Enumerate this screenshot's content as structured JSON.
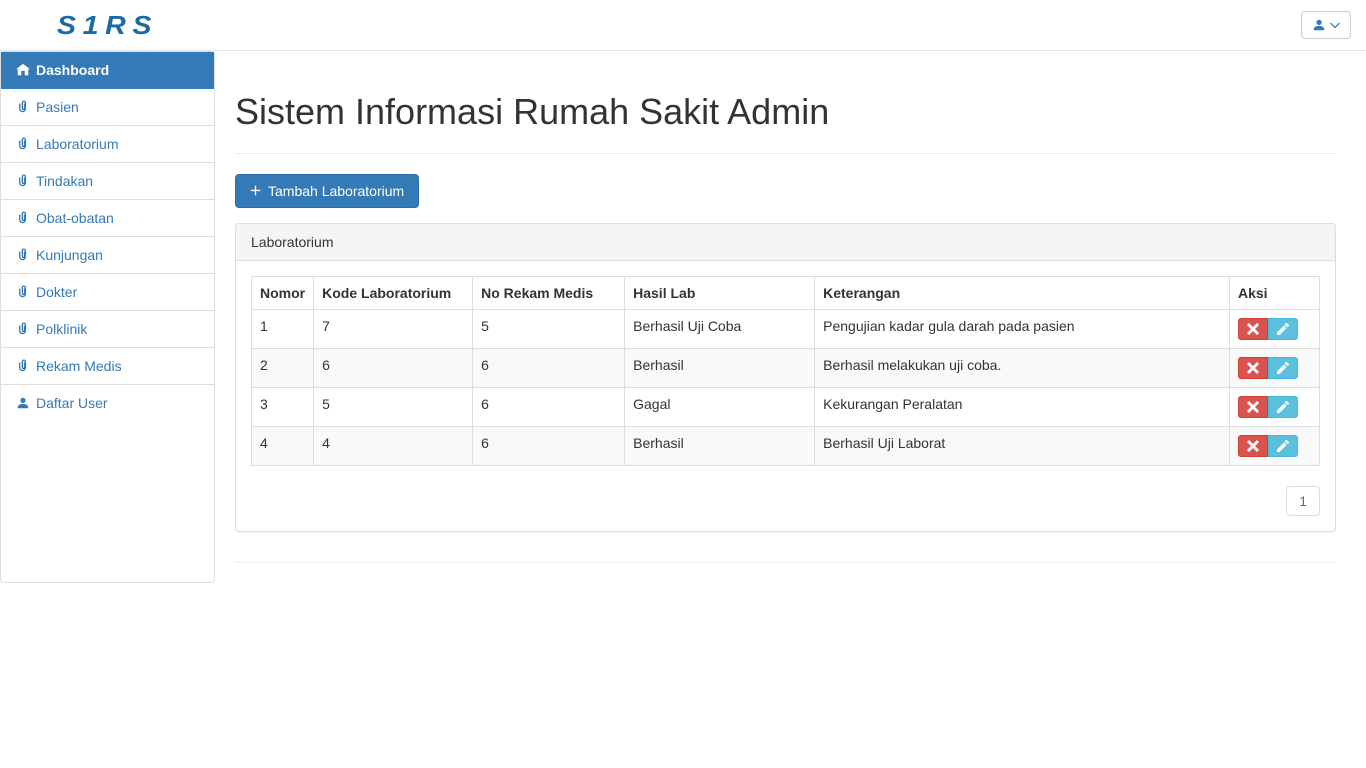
{
  "brand": "S1RS",
  "sidebar": {
    "items": [
      {
        "label": "Dashboard",
        "icon": "home",
        "active": true
      },
      {
        "label": "Pasien",
        "icon": "clip"
      },
      {
        "label": "Laboratorium",
        "icon": "clip"
      },
      {
        "label": "Tindakan",
        "icon": "clip"
      },
      {
        "label": "Obat-obatan",
        "icon": "clip"
      },
      {
        "label": "Kunjungan",
        "icon": "clip"
      },
      {
        "label": "Dokter",
        "icon": "clip"
      },
      {
        "label": "Polklinik",
        "icon": "clip"
      },
      {
        "label": "Rekam Medis",
        "icon": "clip"
      },
      {
        "label": "Daftar User",
        "icon": "user"
      }
    ]
  },
  "page": {
    "title": "Sistem Informasi Rumah Sakit Admin",
    "add_button": "Tambah Laboratorium",
    "panel_title": "Laboratorium"
  },
  "table": {
    "columns": [
      "Nomor",
      "Kode Laboratorium",
      "No Rekam Medis",
      "Hasil Lab",
      "Keterangan",
      "Aksi"
    ],
    "rows": [
      {
        "nomor": "1",
        "kode": "7",
        "rekam": "5",
        "hasil": "Berhasil Uji Coba",
        "ket": "Pengujian kadar gula darah pada pasien"
      },
      {
        "nomor": "2",
        "kode": "6",
        "rekam": "6",
        "hasil": "Berhasil",
        "ket": "Berhasil melakukan uji coba."
      },
      {
        "nomor": "3",
        "kode": "5",
        "rekam": "6",
        "hasil": "Gagal",
        "ket": "Kekurangan Peralatan"
      },
      {
        "nomor": "4",
        "kode": "4",
        "rekam": "6",
        "hasil": "Berhasil",
        "ket": "Berhasil Uji Laborat"
      }
    ]
  },
  "pagination": {
    "current": "1"
  },
  "colors": {
    "primary": "#337ab7",
    "link": "#337ab7",
    "danger": "#d9534f",
    "info": "#5bc0de",
    "border": "#ddd",
    "panel_heading_bg": "#f5f5f5"
  }
}
